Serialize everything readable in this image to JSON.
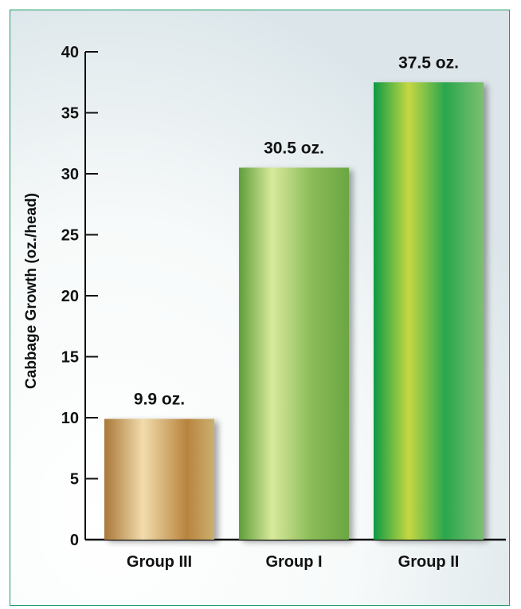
{
  "chart_data": {
    "type": "bar",
    "title": "",
    "xlabel": "",
    "ylabel": "Cabbage Growth (oz./head)",
    "categories": [
      "Group III",
      "Group I",
      "Group II"
    ],
    "values": [
      9.9,
      30.5,
      37.5
    ],
    "data_labels": [
      "9.9 oz.",
      "30.5 oz.",
      "37.5 oz."
    ],
    "ylim": [
      0,
      40
    ],
    "yticks": [
      0,
      5,
      10,
      15,
      20,
      25,
      30,
      35,
      40
    ],
    "grid": false,
    "legend": "none",
    "colors": {
      "frame": "#1e9a6a",
      "group_iii": [
        "#b08040",
        "#f0d8a8",
        "#b88848"
      ],
      "group_i": [
        "#6aa842",
        "#d6e89a",
        "#7ab048"
      ],
      "group_ii": [
        "#10a048",
        "#c4d840",
        "#30a850"
      ]
    }
  }
}
